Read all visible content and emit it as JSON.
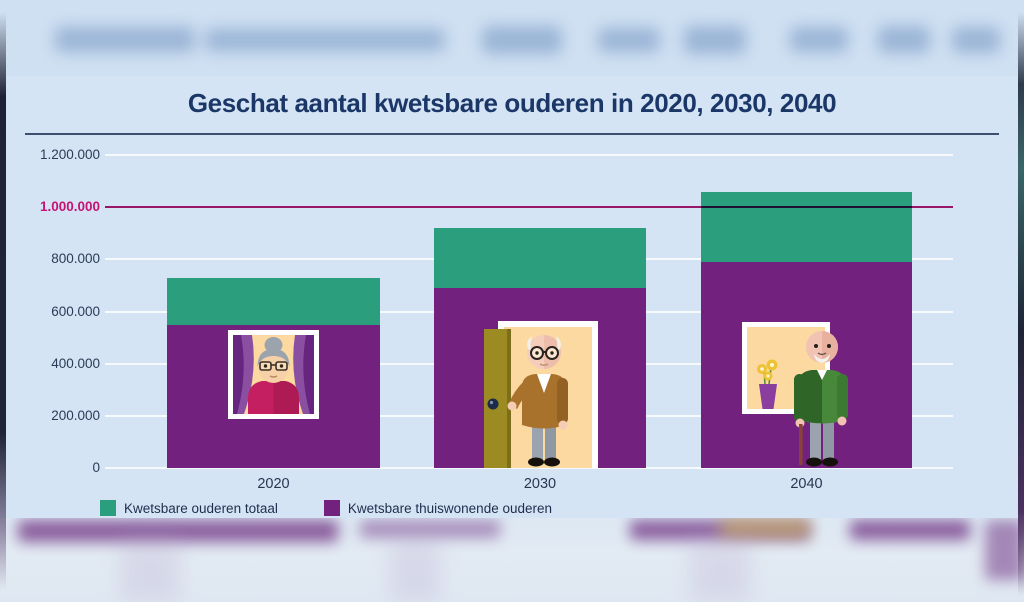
{
  "page": {
    "title": "Geschat aantal kwetsbare ouderen in 2020, 2030, 2040"
  },
  "chart_data": {
    "type": "bar",
    "title": "Geschat aantal kwetsbare ouderen in 2020, 2030, 2040",
    "categories": [
      "2020",
      "2030",
      "2040"
    ],
    "series": [
      {
        "name": "Kwetsbare ouderen totaal",
        "color": "#2a9e7d",
        "values": [
          730000,
          920000,
          1060000
        ]
      },
      {
        "name": "Kwetsbare thuiswonende ouderen",
        "color": "#72217e",
        "values": [
          550000,
          690000,
          790000
        ]
      }
    ],
    "overlap": "purple bars drawn in front of teal total bars",
    "ylim": [
      0,
      1200000
    ],
    "y_ticks": [
      "1.200.000",
      "1.000.000",
      "800.000",
      "600.000",
      "400.000",
      "200.000",
      "0"
    ],
    "reference_line": {
      "value": 1000000,
      "label": "1.000.000",
      "color": "#b5186b"
    },
    "grid": true,
    "gridline_color": "#ffffff",
    "legend_position": "bottom",
    "illustrations": [
      "grandma-behind-window-with-curtains",
      "elderly-man-standing-in-open-doorway",
      "elderly-man-outside-with-cane-next-to-window-with-flowerpot"
    ]
  },
  "legend": {
    "items": [
      {
        "label": "Kwetsbare ouderen totaal",
        "color": "#2a9e7d"
      },
      {
        "label": "Kwetsbare thuiswonende ouderen",
        "color": "#72217e"
      }
    ]
  },
  "colors": {
    "background": "#d5e4f5",
    "title_text": "#1b3768",
    "axis_text": "#2b3a55",
    "reference_label": "#c41372",
    "title_rule": "#3d4f6e"
  }
}
